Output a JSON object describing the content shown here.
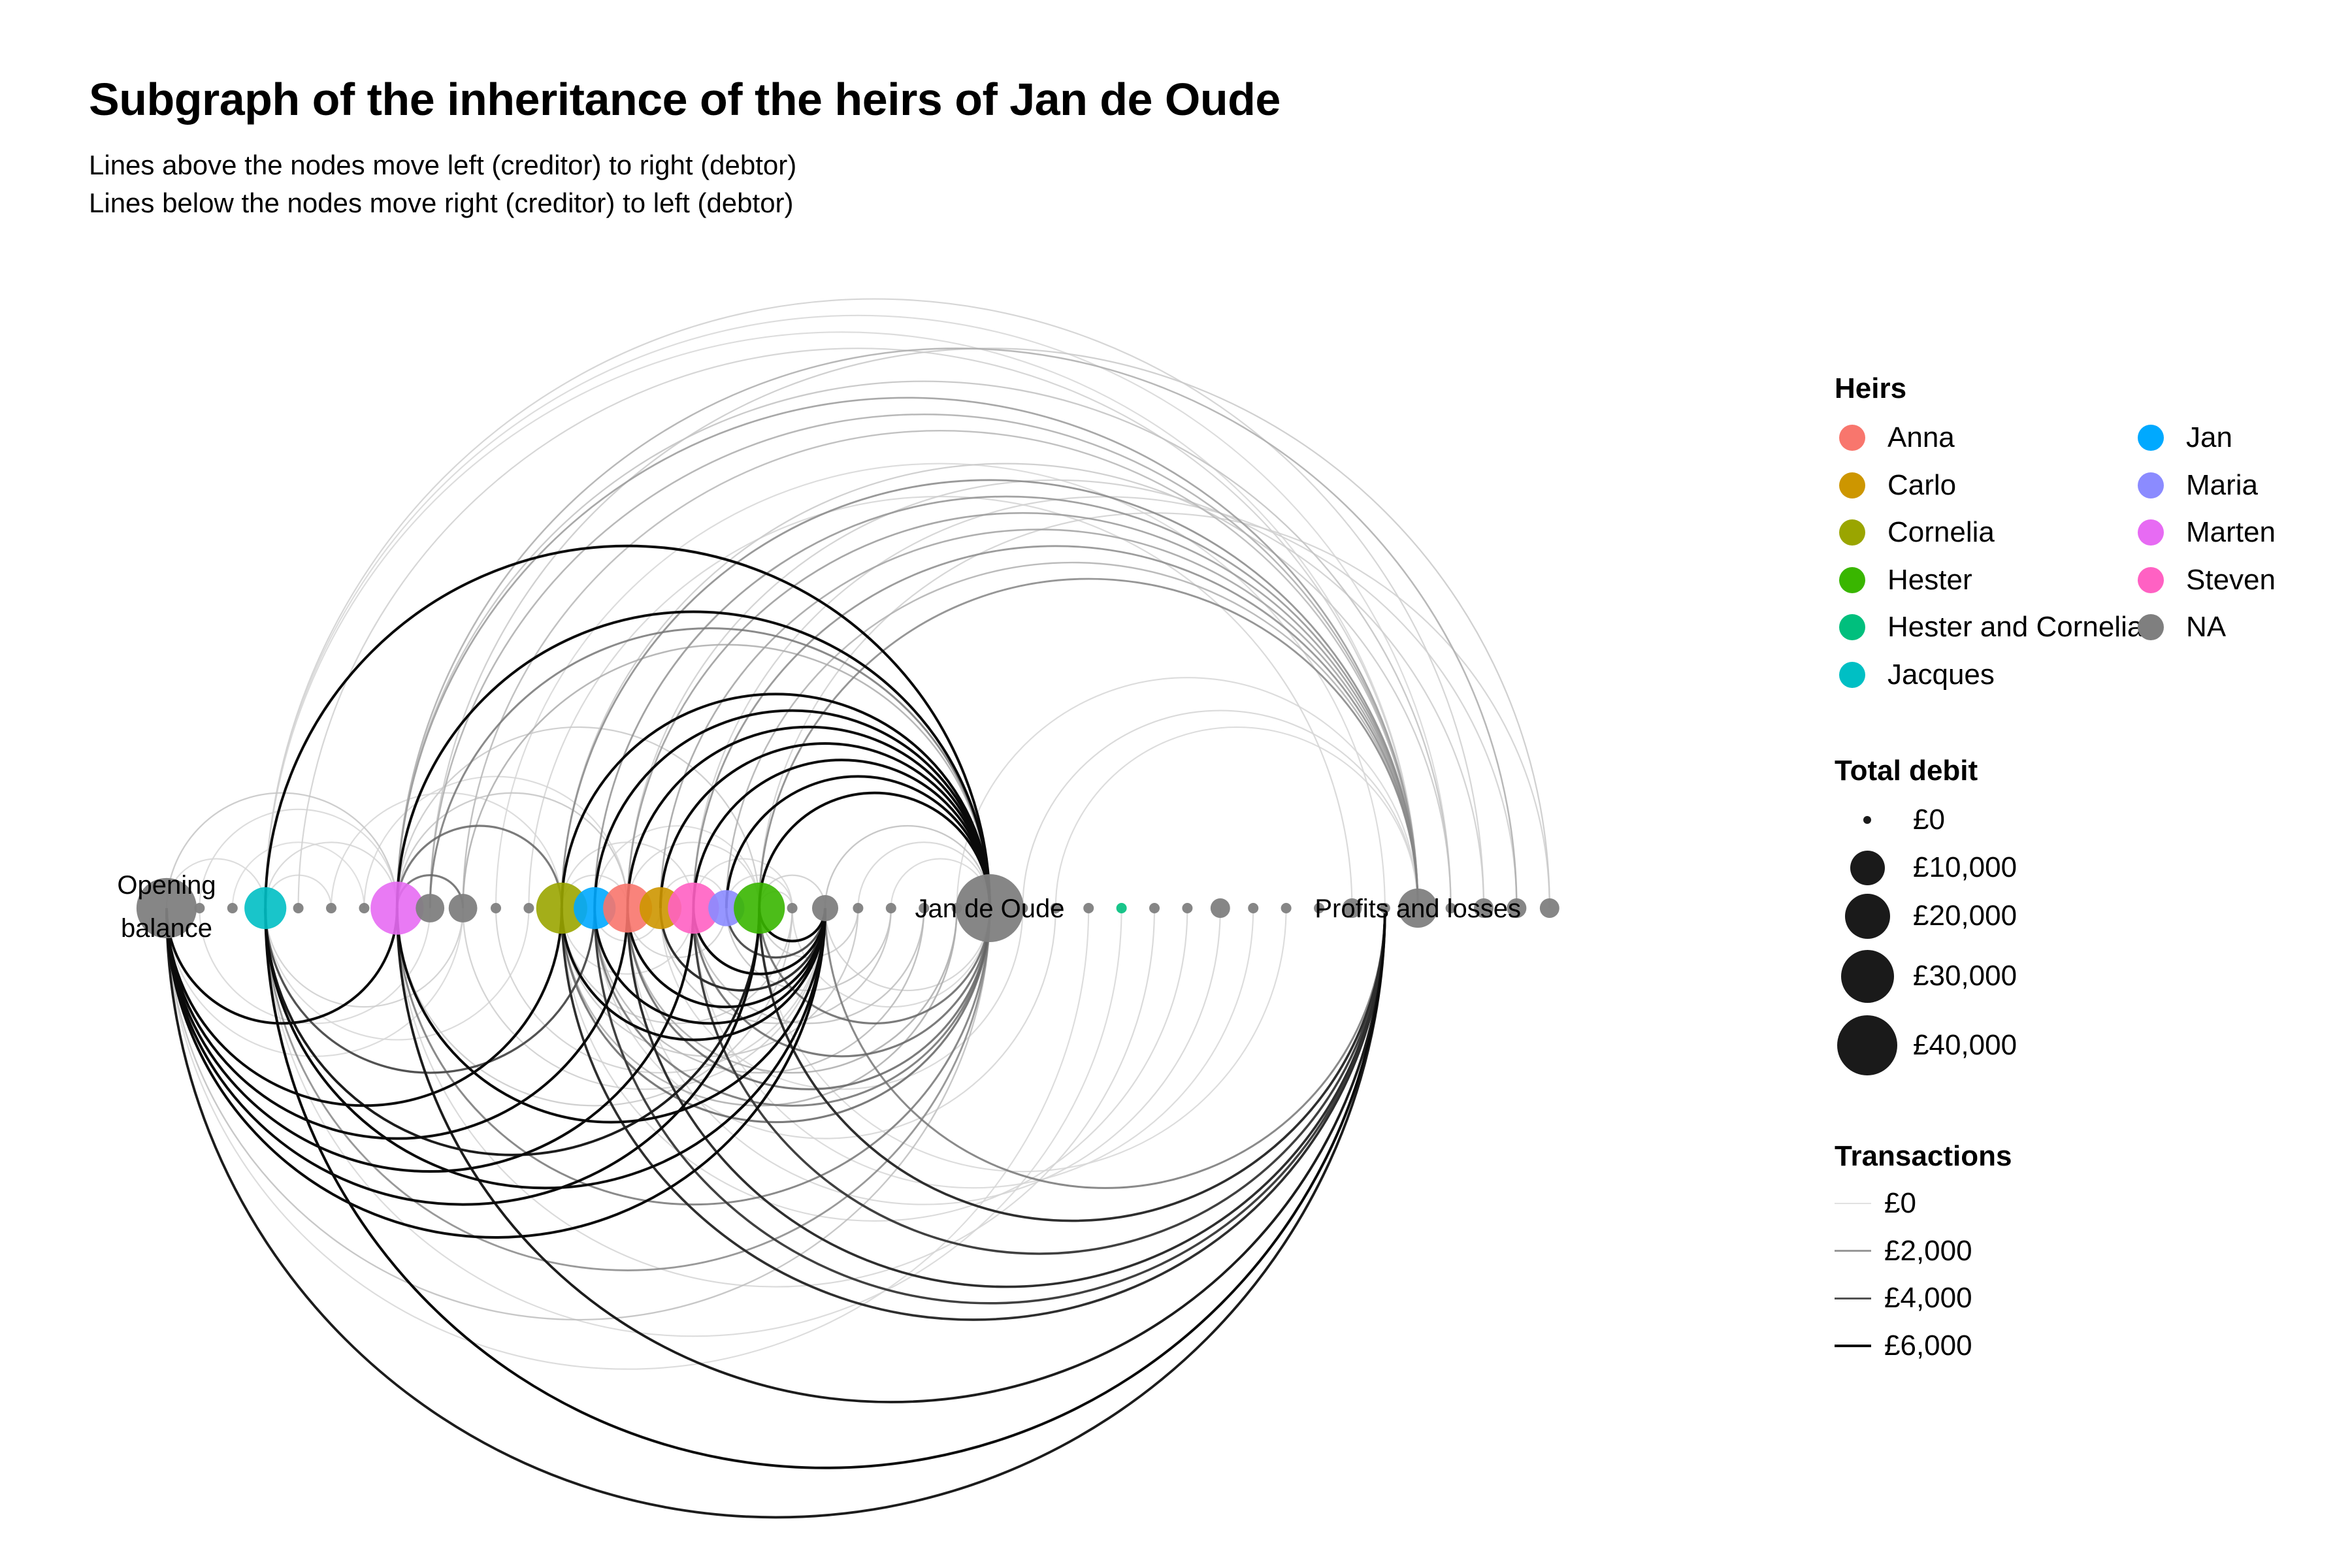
{
  "title": "Subgraph of the inheritance of the heirs of Jan de Oude",
  "subtitle": [
    "Lines above the nodes move left (creditor) to right (debtor)",
    "Lines below the nodes move right (creditor) to left (debtor)"
  ],
  "heirs_legend": {
    "title": "Heirs",
    "items": [
      {
        "name": "Anna",
        "color": "#F8766D"
      },
      {
        "name": "Carlo",
        "color": "#CD9600"
      },
      {
        "name": "Cornelia",
        "color": "#9AA500"
      },
      {
        "name": "Hester",
        "color": "#39B600"
      },
      {
        "name": "Hester and Cornelia",
        "color": "#00BF7D"
      },
      {
        "name": "Jacques",
        "color": "#00BFC4"
      },
      {
        "name": "Jan",
        "color": "#00A9FF"
      },
      {
        "name": "Maria",
        "color": "#8B8BFF"
      },
      {
        "name": "Marten",
        "color": "#E76BF3"
      },
      {
        "name": "Steven",
        "color": "#FF61C3"
      },
      {
        "name": "NA",
        "color": "#7F7F7F"
      }
    ]
  },
  "debit_legend": {
    "title": "Total debit",
    "items": [
      {
        "label": "£0",
        "value": 0
      },
      {
        "label": "£10,000",
        "value": 10000
      },
      {
        "label": "£20,000",
        "value": 20000
      },
      {
        "label": "£30,000",
        "value": 30000
      },
      {
        "label": "£40,000",
        "value": 40000
      }
    ]
  },
  "transactions_legend": {
    "title": "Transactions",
    "items": [
      {
        "label": "£0",
        "value": 0
      },
      {
        "label": "£2,000",
        "value": 2000
      },
      {
        "label": "£4,000",
        "value": 4000
      },
      {
        "label": "£6,000",
        "value": 6000
      }
    ]
  },
  "chart_data": {
    "type": "arc-diagram",
    "nodes": [
      {
        "id": 0,
        "label": "Opening balance",
        "heir": "NA",
        "debit": 30000
      },
      {
        "id": 1,
        "label": "",
        "heir": "NA",
        "debit": 0
      },
      {
        "id": 2,
        "label": "",
        "heir": "NA",
        "debit": 0
      },
      {
        "id": 3,
        "label": "",
        "heir": "Jacques",
        "debit": 12000
      },
      {
        "id": 4,
        "label": "",
        "heir": "NA",
        "debit": 0
      },
      {
        "id": 5,
        "label": "",
        "heir": "NA",
        "debit": 0
      },
      {
        "id": 6,
        "label": "",
        "heir": "NA",
        "debit": 0
      },
      {
        "id": 7,
        "label": "",
        "heir": "Marten",
        "debit": 22000
      },
      {
        "id": 8,
        "label": "",
        "heir": "NA",
        "debit": 4000
      },
      {
        "id": 9,
        "label": "",
        "heir": "NA",
        "debit": 4000
      },
      {
        "id": 10,
        "label": "",
        "heir": "NA",
        "debit": 0
      },
      {
        "id": 11,
        "label": "",
        "heir": "NA",
        "debit": 0
      },
      {
        "id": 12,
        "label": "",
        "heir": "Cornelia",
        "debit": 20000
      },
      {
        "id": 13,
        "label": "",
        "heir": "Jan",
        "debit": 12000
      },
      {
        "id": 14,
        "label": "",
        "heir": "Anna",
        "debit": 18000
      },
      {
        "id": 15,
        "label": "",
        "heir": "Carlo",
        "debit": 12000
      },
      {
        "id": 16,
        "label": "",
        "heir": "Steven",
        "debit": 20000
      },
      {
        "id": 17,
        "label": "",
        "heir": "Maria",
        "debit": 8000
      },
      {
        "id": 18,
        "label": "",
        "heir": "Hester",
        "debit": 20000
      },
      {
        "id": 19,
        "label": "",
        "heir": "NA",
        "debit": 0
      },
      {
        "id": 20,
        "label": "",
        "heir": "NA",
        "debit": 3000
      },
      {
        "id": 21,
        "label": "",
        "heir": "NA",
        "debit": 0
      },
      {
        "id": 22,
        "label": "",
        "heir": "NA",
        "debit": 0
      },
      {
        "id": 23,
        "label": "",
        "heir": "NA",
        "debit": 0
      },
      {
        "id": 24,
        "label": "",
        "heir": "NA",
        "debit": 0
      },
      {
        "id": 25,
        "label": "Jan de Oude",
        "heir": "NA",
        "debit": 40000
      },
      {
        "id": 26,
        "label": "",
        "heir": "NA",
        "debit": 0
      },
      {
        "id": 27,
        "label": "",
        "heir": "NA",
        "debit": 0
      },
      {
        "id": 28,
        "label": "",
        "heir": "NA",
        "debit": 0
      },
      {
        "id": 29,
        "label": "",
        "heir": "Hester and Cornelia",
        "debit": 0
      },
      {
        "id": 30,
        "label": "",
        "heir": "NA",
        "debit": 0
      },
      {
        "id": 31,
        "label": "",
        "heir": "NA",
        "debit": 0
      },
      {
        "id": 32,
        "label": "",
        "heir": "NA",
        "debit": 1000
      },
      {
        "id": 33,
        "label": "",
        "heir": "NA",
        "debit": 0
      },
      {
        "id": 34,
        "label": "",
        "heir": "NA",
        "debit": 0
      },
      {
        "id": 35,
        "label": "",
        "heir": "NA",
        "debit": 0
      },
      {
        "id": 36,
        "label": "",
        "heir": "NA",
        "debit": 1000
      },
      {
        "id": 37,
        "label": "",
        "heir": "NA",
        "debit": 0
      },
      {
        "id": 38,
        "label": "Profits and losses",
        "heir": "NA",
        "debit": 10000
      },
      {
        "id": 39,
        "label": "",
        "heir": "NA",
        "debit": 0
      },
      {
        "id": 40,
        "label": "",
        "heir": "NA",
        "debit": 1000
      },
      {
        "id": 41,
        "label": "",
        "heir": "NA",
        "debit": 1000
      },
      {
        "id": 42,
        "label": "",
        "heir": "NA",
        "debit": 1000
      }
    ],
    "edges": [
      {
        "from": 0,
        "to": 3,
        "amount": 300
      },
      {
        "from": 0,
        "to": 7,
        "amount": 800
      },
      {
        "from": 1,
        "to": 7,
        "amount": 300
      },
      {
        "from": 2,
        "to": 6,
        "amount": 200
      },
      {
        "from": 3,
        "to": 5,
        "amount": 300
      },
      {
        "from": 3,
        "to": 7,
        "amount": 400
      },
      {
        "from": 3,
        "to": 25,
        "amount": 6000
      },
      {
        "from": 7,
        "to": 25,
        "amount": 6000
      },
      {
        "from": 3,
        "to": 38,
        "amount": 300
      },
      {
        "from": 3,
        "to": 39,
        "amount": 300
      },
      {
        "from": 3,
        "to": 40,
        "amount": 500
      },
      {
        "from": 4,
        "to": 38,
        "amount": 500
      },
      {
        "from": 7,
        "to": 38,
        "amount": 2000
      },
      {
        "from": 7,
        "to": 39,
        "amount": 900
      },
      {
        "from": 7,
        "to": 41,
        "amount": 1500
      },
      {
        "from": 8,
        "to": 25,
        "amount": 3000
      },
      {
        "from": 8,
        "to": 38,
        "amount": 1500
      },
      {
        "from": 8,
        "to": 42,
        "amount": 700
      },
      {
        "from": 9,
        "to": 25,
        "amount": 1500
      },
      {
        "from": 9,
        "to": 38,
        "amount": 1200
      },
      {
        "from": 10,
        "to": 37,
        "amount": 300
      },
      {
        "from": 11,
        "to": 36,
        "amount": 400
      },
      {
        "from": 12,
        "to": 25,
        "amount": 6000
      },
      {
        "from": 13,
        "to": 25,
        "amount": 6000
      },
      {
        "from": 14,
        "to": 25,
        "amount": 6000
      },
      {
        "from": 15,
        "to": 25,
        "amount": 6000
      },
      {
        "from": 16,
        "to": 25,
        "amount": 6000
      },
      {
        "from": 17,
        "to": 25,
        "amount": 6000
      },
      {
        "from": 18,
        "to": 25,
        "amount": 6000
      },
      {
        "from": 12,
        "to": 38,
        "amount": 2500
      },
      {
        "from": 13,
        "to": 38,
        "amount": 2200
      },
      {
        "from": 14,
        "to": 38,
        "amount": 2000
      },
      {
        "from": 15,
        "to": 38,
        "amount": 1800
      },
      {
        "from": 16,
        "to": 38,
        "amount": 2400
      },
      {
        "from": 17,
        "to": 38,
        "amount": 1400
      },
      {
        "from": 18,
        "to": 38,
        "amount": 2600
      },
      {
        "from": 12,
        "to": 39,
        "amount": 700
      },
      {
        "from": 14,
        "to": 40,
        "amount": 600
      },
      {
        "from": 16,
        "to": 41,
        "amount": 500
      },
      {
        "from": 18,
        "to": 42,
        "amount": 500
      },
      {
        "from": 12,
        "to": 14,
        "amount": 400
      },
      {
        "from": 12,
        "to": 16,
        "amount": 400
      },
      {
        "from": 13,
        "to": 18,
        "amount": 300
      },
      {
        "from": 14,
        "to": 18,
        "amount": 400
      },
      {
        "from": 15,
        "to": 17,
        "amount": 300
      },
      {
        "from": 16,
        "to": 19,
        "amount": 300
      },
      {
        "from": 17,
        "to": 19,
        "amount": 300
      },
      {
        "from": 18,
        "to": 20,
        "amount": 600
      },
      {
        "from": 18,
        "to": 19,
        "amount": 400
      },
      {
        "from": 20,
        "to": 25,
        "amount": 1000
      },
      {
        "from": 21,
        "to": 25,
        "amount": 400
      },
      {
        "from": 22,
        "to": 25,
        "amount": 300
      },
      {
        "from": 26,
        "to": 38,
        "amount": 400
      },
      {
        "from": 27,
        "to": 38,
        "amount": 300
      },
      {
        "from": 24,
        "to": 38,
        "amount": 300
      },
      {
        "from": 7,
        "to": 9,
        "amount": 3500
      },
      {
        "from": 7,
        "to": 12,
        "amount": 3500
      },
      {
        "from": 7,
        "to": 14,
        "amount": 800
      },
      {
        "from": 7,
        "to": 18,
        "amount": 700
      },
      {
        "from": 5,
        "to": 12,
        "amount": 300
      },
      {
        "from": 6,
        "to": 14,
        "amount": 300
      },
      {
        "from": 20,
        "to": 0,
        "amount": 6000
      },
      {
        "from": 20,
        "to": 3,
        "amount": 6000
      },
      {
        "from": 20,
        "to": 7,
        "amount": 6000
      },
      {
        "from": 20,
        "to": 12,
        "amount": 6000
      },
      {
        "from": 20,
        "to": 13,
        "amount": 6000
      },
      {
        "from": 20,
        "to": 14,
        "amount": 6000
      },
      {
        "from": 20,
        "to": 15,
        "amount": 5000
      },
      {
        "from": 20,
        "to": 16,
        "amount": 6000
      },
      {
        "from": 20,
        "to": 17,
        "amount": 4000
      },
      {
        "from": 20,
        "to": 18,
        "amount": 6000
      },
      {
        "from": 18,
        "to": 0,
        "amount": 6000
      },
      {
        "from": 18,
        "to": 3,
        "amount": 5500
      },
      {
        "from": 16,
        "to": 0,
        "amount": 6000
      },
      {
        "from": 14,
        "to": 0,
        "amount": 6000
      },
      {
        "from": 12,
        "to": 0,
        "amount": 6000
      },
      {
        "from": 7,
        "to": 0,
        "amount": 6000
      },
      {
        "from": 13,
        "to": 3,
        "amount": 4000
      },
      {
        "from": 25,
        "to": 0,
        "amount": 1000
      },
      {
        "from": 25,
        "to": 3,
        "amount": 2500
      },
      {
        "from": 25,
        "to": 7,
        "amount": 3000
      },
      {
        "from": 25,
        "to": 12,
        "amount": 3500
      },
      {
        "from": 25,
        "to": 13,
        "amount": 3200
      },
      {
        "from": 25,
        "to": 14,
        "amount": 3500
      },
      {
        "from": 25,
        "to": 16,
        "amount": 3500
      },
      {
        "from": 25,
        "to": 18,
        "amount": 3500
      },
      {
        "from": 24,
        "to": 12,
        "amount": 1500
      },
      {
        "from": 24,
        "to": 14,
        "amount": 1500
      },
      {
        "from": 23,
        "to": 13,
        "amount": 1200
      },
      {
        "from": 23,
        "to": 16,
        "amount": 1000
      },
      {
        "from": 22,
        "to": 15,
        "amount": 900
      },
      {
        "from": 22,
        "to": 17,
        "amount": 900
      },
      {
        "from": 21,
        "to": 18,
        "amount": 700
      },
      {
        "from": 21,
        "to": 12,
        "amount": 800
      },
      {
        "from": 37,
        "to": 0,
        "amount": 5500
      },
      {
        "from": 37,
        "to": 3,
        "amount": 6000
      },
      {
        "from": 37,
        "to": 7,
        "amount": 5500
      },
      {
        "from": 37,
        "to": 12,
        "amount": 5000
      },
      {
        "from": 37,
        "to": 13,
        "amount": 4500
      },
      {
        "from": 37,
        "to": 14,
        "amount": 5000
      },
      {
        "from": 37,
        "to": 16,
        "amount": 4500
      },
      {
        "from": 37,
        "to": 18,
        "amount": 5000
      },
      {
        "from": 37,
        "to": 20,
        "amount": 3000
      },
      {
        "from": 28,
        "to": 0,
        "amount": 300
      },
      {
        "from": 29,
        "to": 3,
        "amount": 300
      },
      {
        "from": 30,
        "to": 7,
        "amount": 400
      },
      {
        "from": 31,
        "to": 12,
        "amount": 400
      },
      {
        "from": 32,
        "to": 14,
        "amount": 400
      },
      {
        "from": 33,
        "to": 16,
        "amount": 300
      },
      {
        "from": 34,
        "to": 18,
        "amount": 300
      },
      {
        "from": 27,
        "to": 13,
        "amount": 400
      },
      {
        "from": 26,
        "to": 15,
        "amount": 400
      },
      {
        "from": 9,
        "to": 3,
        "amount": 600
      },
      {
        "from": 9,
        "to": 0,
        "amount": 300
      },
      {
        "from": 8,
        "to": 1,
        "amount": 300
      },
      {
        "from": 11,
        "to": 3,
        "amount": 300
      },
      {
        "from": 19,
        "to": 12,
        "amount": 700
      },
      {
        "from": 19,
        "to": 7,
        "amount": 700
      },
      {
        "from": 17,
        "to": 14,
        "amount": 500
      },
      {
        "from": 16,
        "to": 12,
        "amount": 400
      },
      {
        "from": 15,
        "to": 13,
        "amount": 400
      },
      {
        "from": 20,
        "to": 9,
        "amount": 600
      },
      {
        "from": 20,
        "to": 10,
        "amount": 500
      },
      {
        "from": 25,
        "to": 20,
        "amount": 500
      },
      {
        "from": 25,
        "to": 19,
        "amount": 400
      }
    ]
  }
}
